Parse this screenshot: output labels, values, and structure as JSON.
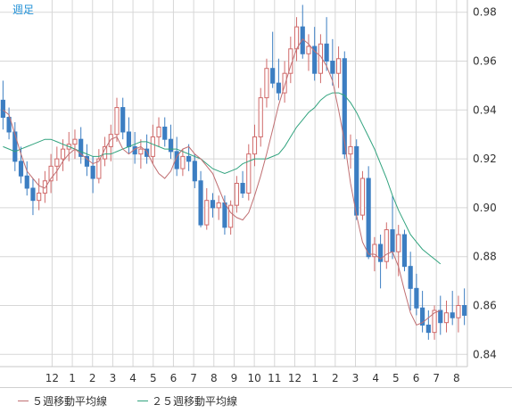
{
  "period_label": "週足",
  "legend": [
    {
      "label": "５週移動平均線",
      "color": "#c06f72"
    },
    {
      "label": "２５週移動平均線",
      "color": "#31a37e"
    }
  ],
  "colors": {
    "up": "#d06a6a",
    "down": "#3c7ec2",
    "grid": "#d7d7d7",
    "axis": "#c7c7c7",
    "text": "#333333"
  },
  "chart_data": {
    "type": "candlestick",
    "ylim": [
      0.835,
      0.985
    ],
    "y_ticks": [
      "0.98",
      "0.96",
      "0.94",
      "0.92",
      "0.90",
      "0.88",
      "0.86",
      "0.84"
    ],
    "x_ticks": [
      "12",
      "1",
      "2",
      "3",
      "4",
      "5",
      "6",
      "7",
      "8",
      "9",
      "10",
      "11",
      "12",
      "1",
      "2",
      "3",
      "4",
      "5",
      "6",
      "7",
      "8"
    ],
    "grid": true,
    "series": [
      {
        "name": "５週移動平均線",
        "values": [
          0.94,
          0.938,
          0.93,
          0.922,
          0.915,
          0.912,
          0.909,
          0.908,
          0.912,
          0.915,
          0.919,
          0.922,
          0.924,
          0.922,
          0.92,
          0.918,
          0.919,
          0.924,
          0.928,
          0.929,
          0.924,
          0.922,
          0.924,
          0.925,
          0.923,
          0.918,
          0.914,
          0.912,
          0.915,
          0.921,
          0.924,
          0.925,
          0.922,
          0.92,
          0.917,
          0.914,
          0.908,
          0.902,
          0.898,
          0.896,
          0.895,
          0.898,
          0.905,
          0.913,
          0.922,
          0.932,
          0.942,
          0.95,
          0.958,
          0.965,
          0.969,
          0.967,
          0.964,
          0.962,
          0.958,
          0.952,
          0.94,
          0.927,
          0.91,
          0.897,
          0.886,
          0.881,
          0.881,
          0.879,
          0.881,
          0.882,
          0.876,
          0.866,
          0.857,
          0.852,
          0.853,
          0.855,
          0.857,
          0.858
        ]
      },
      {
        "name": "２５週移動平均線",
        "values": [
          0.925,
          0.924,
          0.923,
          0.924,
          0.925,
          0.926,
          0.927,
          0.928,
          0.928,
          0.927,
          0.926,
          0.925,
          0.924,
          0.923,
          0.922,
          0.921,
          0.921,
          0.922,
          0.922,
          0.923,
          0.924,
          0.925,
          0.926,
          0.927,
          0.927,
          0.926,
          0.925,
          0.924,
          0.924,
          0.924,
          0.923,
          0.922,
          0.921,
          0.92,
          0.918,
          0.916,
          0.915,
          0.914,
          0.915,
          0.916,
          0.918,
          0.919,
          0.92,
          0.92,
          0.92,
          0.921,
          0.922,
          0.925,
          0.929,
          0.933,
          0.936,
          0.939,
          0.941,
          0.944,
          0.946,
          0.947,
          0.947,
          0.946,
          0.943,
          0.939,
          0.934,
          0.929,
          0.924,
          0.918,
          0.912,
          0.905,
          0.899,
          0.894,
          0.889,
          0.886,
          0.883,
          0.881,
          0.879,
          0.877
        ]
      },
      {
        "name": "candles",
        "values": [
          {
            "o": 0.944,
            "h": 0.952,
            "l": 0.932,
            "c": 0.937
          },
          {
            "o": 0.937,
            "h": 0.941,
            "l": 0.928,
            "c": 0.931
          },
          {
            "o": 0.931,
            "h": 0.935,
            "l": 0.915,
            "c": 0.919
          },
          {
            "o": 0.919,
            "h": 0.925,
            "l": 0.91,
            "c": 0.913
          },
          {
            "o": 0.913,
            "h": 0.919,
            "l": 0.905,
            "c": 0.908
          },
          {
            "o": 0.908,
            "h": 0.912,
            "l": 0.897,
            "c": 0.903
          },
          {
            "o": 0.903,
            "h": 0.912,
            "l": 0.899,
            "c": 0.906
          },
          {
            "o": 0.906,
            "h": 0.915,
            "l": 0.902,
            "c": 0.911
          },
          {
            "o": 0.911,
            "h": 0.922,
            "l": 0.906,
            "c": 0.917
          },
          {
            "o": 0.917,
            "h": 0.925,
            "l": 0.911,
            "c": 0.92
          },
          {
            "o": 0.92,
            "h": 0.928,
            "l": 0.915,
            "c": 0.924
          },
          {
            "o": 0.924,
            "h": 0.931,
            "l": 0.919,
            "c": 0.926
          },
          {
            "o": 0.926,
            "h": 0.932,
            "l": 0.92,
            "c": 0.928
          },
          {
            "o": 0.928,
            "h": 0.933,
            "l": 0.918,
            "c": 0.921
          },
          {
            "o": 0.921,
            "h": 0.926,
            "l": 0.913,
            "c": 0.917
          },
          {
            "o": 0.917,
            "h": 0.921,
            "l": 0.906,
            "c": 0.912
          },
          {
            "o": 0.912,
            "h": 0.924,
            "l": 0.91,
            "c": 0.92
          },
          {
            "o": 0.92,
            "h": 0.929,
            "l": 0.917,
            "c": 0.925
          },
          {
            "o": 0.925,
            "h": 0.934,
            "l": 0.919,
            "c": 0.93
          },
          {
            "o": 0.93,
            "h": 0.945,
            "l": 0.927,
            "c": 0.941
          },
          {
            "o": 0.941,
            "h": 0.945,
            "l": 0.928,
            "c": 0.931
          },
          {
            "o": 0.931,
            "h": 0.937,
            "l": 0.922,
            "c": 0.925
          },
          {
            "o": 0.925,
            "h": 0.931,
            "l": 0.918,
            "c": 0.922
          },
          {
            "o": 0.922,
            "h": 0.928,
            "l": 0.916,
            "c": 0.924
          },
          {
            "o": 0.924,
            "h": 0.93,
            "l": 0.918,
            "c": 0.921
          },
          {
            "o": 0.921,
            "h": 0.934,
            "l": 0.918,
            "c": 0.929
          },
          {
            "o": 0.929,
            "h": 0.937,
            "l": 0.925,
            "c": 0.933
          },
          {
            "o": 0.933,
            "h": 0.937,
            "l": 0.925,
            "c": 0.928
          },
          {
            "o": 0.928,
            "h": 0.934,
            "l": 0.92,
            "c": 0.923
          },
          {
            "o": 0.923,
            "h": 0.929,
            "l": 0.913,
            "c": 0.916
          },
          {
            "o": 0.916,
            "h": 0.924,
            "l": 0.913,
            "c": 0.921
          },
          {
            "o": 0.921,
            "h": 0.926,
            "l": 0.915,
            "c": 0.919
          },
          {
            "o": 0.919,
            "h": 0.922,
            "l": 0.908,
            "c": 0.911
          },
          {
            "o": 0.911,
            "h": 0.915,
            "l": 0.892,
            "c": 0.893
          },
          {
            "o": 0.893,
            "h": 0.908,
            "l": 0.891,
            "c": 0.903
          },
          {
            "o": 0.903,
            "h": 0.906,
            "l": 0.896,
            "c": 0.9
          },
          {
            "o": 0.9,
            "h": 0.905,
            "l": 0.895,
            "c": 0.902
          },
          {
            "o": 0.902,
            "h": 0.905,
            "l": 0.889,
            "c": 0.892
          },
          {
            "o": 0.892,
            "h": 0.903,
            "l": 0.889,
            "c": 0.901
          },
          {
            "o": 0.901,
            "h": 0.913,
            "l": 0.898,
            "c": 0.91
          },
          {
            "o": 0.91,
            "h": 0.915,
            "l": 0.904,
            "c": 0.906
          },
          {
            "o": 0.906,
            "h": 0.926,
            "l": 0.903,
            "c": 0.922
          },
          {
            "o": 0.922,
            "h": 0.934,
            "l": 0.917,
            "c": 0.929
          },
          {
            "o": 0.929,
            "h": 0.949,
            "l": 0.925,
            "c": 0.945
          },
          {
            "o": 0.945,
            "h": 0.961,
            "l": 0.941,
            "c": 0.957
          },
          {
            "o": 0.957,
            "h": 0.972,
            "l": 0.949,
            "c": 0.951
          },
          {
            "o": 0.951,
            "h": 0.961,
            "l": 0.944,
            "c": 0.947
          },
          {
            "o": 0.947,
            "h": 0.96,
            "l": 0.943,
            "c": 0.955
          },
          {
            "o": 0.955,
            "h": 0.97,
            "l": 0.951,
            "c": 0.965
          },
          {
            "o": 0.965,
            "h": 0.978,
            "l": 0.96,
            "c": 0.974
          },
          {
            "o": 0.974,
            "h": 0.983,
            "l": 0.961,
            "c": 0.963
          },
          {
            "o": 0.963,
            "h": 0.971,
            "l": 0.956,
            "c": 0.966
          },
          {
            "o": 0.966,
            "h": 0.974,
            "l": 0.952,
            "c": 0.955
          },
          {
            "o": 0.955,
            "h": 0.971,
            "l": 0.951,
            "c": 0.967
          },
          {
            "o": 0.967,
            "h": 0.978,
            "l": 0.956,
            "c": 0.96
          },
          {
            "o": 0.96,
            "h": 0.969,
            "l": 0.95,
            "c": 0.955
          },
          {
            "o": 0.955,
            "h": 0.966,
            "l": 0.949,
            "c": 0.961
          },
          {
            "o": 0.961,
            "h": 0.964,
            "l": 0.92,
            "c": 0.922
          },
          {
            "o": 0.922,
            "h": 0.93,
            "l": 0.916,
            "c": 0.925
          },
          {
            "o": 0.925,
            "h": 0.928,
            "l": 0.895,
            "c": 0.897
          },
          {
            "o": 0.897,
            "h": 0.915,
            "l": 0.895,
            "c": 0.912
          },
          {
            "o": 0.912,
            "h": 0.917,
            "l": 0.879,
            "c": 0.88
          },
          {
            "o": 0.88,
            "h": 0.888,
            "l": 0.874,
            "c": 0.885
          },
          {
            "o": 0.885,
            "h": 0.889,
            "l": 0.867,
            "c": 0.878
          },
          {
            "o": 0.878,
            "h": 0.894,
            "l": 0.875,
            "c": 0.891
          },
          {
            "o": 0.891,
            "h": 0.905,
            "l": 0.879,
            "c": 0.882
          },
          {
            "o": 0.882,
            "h": 0.893,
            "l": 0.872,
            "c": 0.889
          },
          {
            "o": 0.889,
            "h": 0.891,
            "l": 0.874,
            "c": 0.876
          },
          {
            "o": 0.876,
            "h": 0.882,
            "l": 0.858,
            "c": 0.867
          },
          {
            "o": 0.867,
            "h": 0.873,
            "l": 0.856,
            "c": 0.859
          },
          {
            "o": 0.859,
            "h": 0.866,
            "l": 0.849,
            "c": 0.852
          },
          {
            "o": 0.852,
            "h": 0.858,
            "l": 0.846,
            "c": 0.849
          },
          {
            "o": 0.849,
            "h": 0.86,
            "l": 0.846,
            "c": 0.858
          },
          {
            "o": 0.858,
            "h": 0.864,
            "l": 0.848,
            "c": 0.853
          },
          {
            "o": 0.853,
            "h": 0.862,
            "l": 0.849,
            "c": 0.857
          },
          {
            "o": 0.857,
            "h": 0.866,
            "l": 0.852,
            "c": 0.855
          },
          {
            "o": 0.855,
            "h": 0.864,
            "l": 0.849,
            "c": 0.86
          },
          {
            "o": 0.86,
            "h": 0.867,
            "l": 0.852,
            "c": 0.856
          }
        ]
      }
    ]
  }
}
